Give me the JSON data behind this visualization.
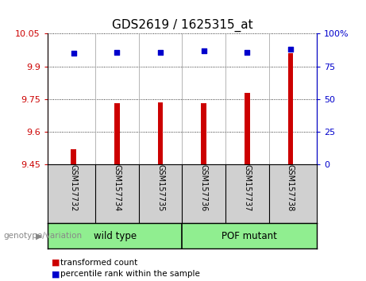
{
  "title": "GDS2619 / 1625315_at",
  "samples": [
    "GSM157732",
    "GSM157734",
    "GSM157735",
    "GSM157736",
    "GSM157737",
    "GSM157738"
  ],
  "transformed_counts": [
    9.52,
    9.73,
    9.735,
    9.73,
    9.78,
    9.96
  ],
  "percentile_ranks": [
    85,
    86,
    86,
    87,
    86,
    88
  ],
  "y_min": 9.45,
  "y_max": 10.05,
  "y_ticks": [
    9.45,
    9.6,
    9.75,
    9.9,
    10.05
  ],
  "y_tick_labels": [
    "9.45",
    "9.6",
    "9.75",
    "9.9",
    "10.05"
  ],
  "right_y_ticks": [
    0,
    25,
    50,
    75,
    100
  ],
  "right_y_tick_labels": [
    "0",
    "25",
    "50",
    "75",
    "100%"
  ],
  "bar_color": "#cc0000",
  "dot_color": "#0000cc",
  "plot_bg": "#ffffff",
  "xtick_bg": "#d0d0d0",
  "group_wt_color": "#90ee90",
  "group_pof_color": "#90ee90",
  "group_labels": [
    "wild type",
    "POF mutant"
  ],
  "genotype_label": "genotype/variation",
  "legend_items": [
    "transformed count",
    "percentile rank within the sample"
  ],
  "legend_colors": [
    "#cc0000",
    "#0000cc"
  ],
  "title_fontsize": 11,
  "tick_fontsize": 8,
  "label_fontsize": 8,
  "bar_width": 0.12
}
